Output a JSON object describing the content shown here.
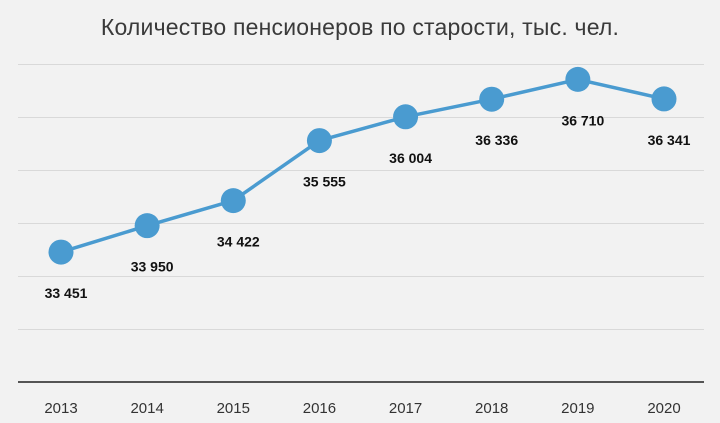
{
  "chart_data": {
    "type": "line",
    "title": "Количество пенсионеров по старости, тыс. чел.",
    "xlabel": "",
    "ylabel": "",
    "categories": [
      "2013",
      "2014",
      "2015",
      "2016",
      "2017",
      "2018",
      "2019",
      "2020"
    ],
    "series": [
      {
        "values": [
          33451,
          33950,
          34422,
          35555,
          36004,
          36336,
          36710,
          36341
        ],
        "labels": [
          "33 451",
          "33 950",
          "34 422",
          "35 555",
          "36 004",
          "36 336",
          "36 710",
          "36 341"
        ],
        "color": "#4a9bd0"
      }
    ],
    "ylim": [
      31000,
      37000
    ],
    "y_gridlines": [
      32000,
      33000,
      34000,
      35000,
      36000,
      37000
    ],
    "grid": true,
    "legend": false
  },
  "colors": {
    "background": "#f2f2f2",
    "series": "#4a9bd0",
    "grid": "#d9d9d9",
    "axis": "#555555"
  }
}
